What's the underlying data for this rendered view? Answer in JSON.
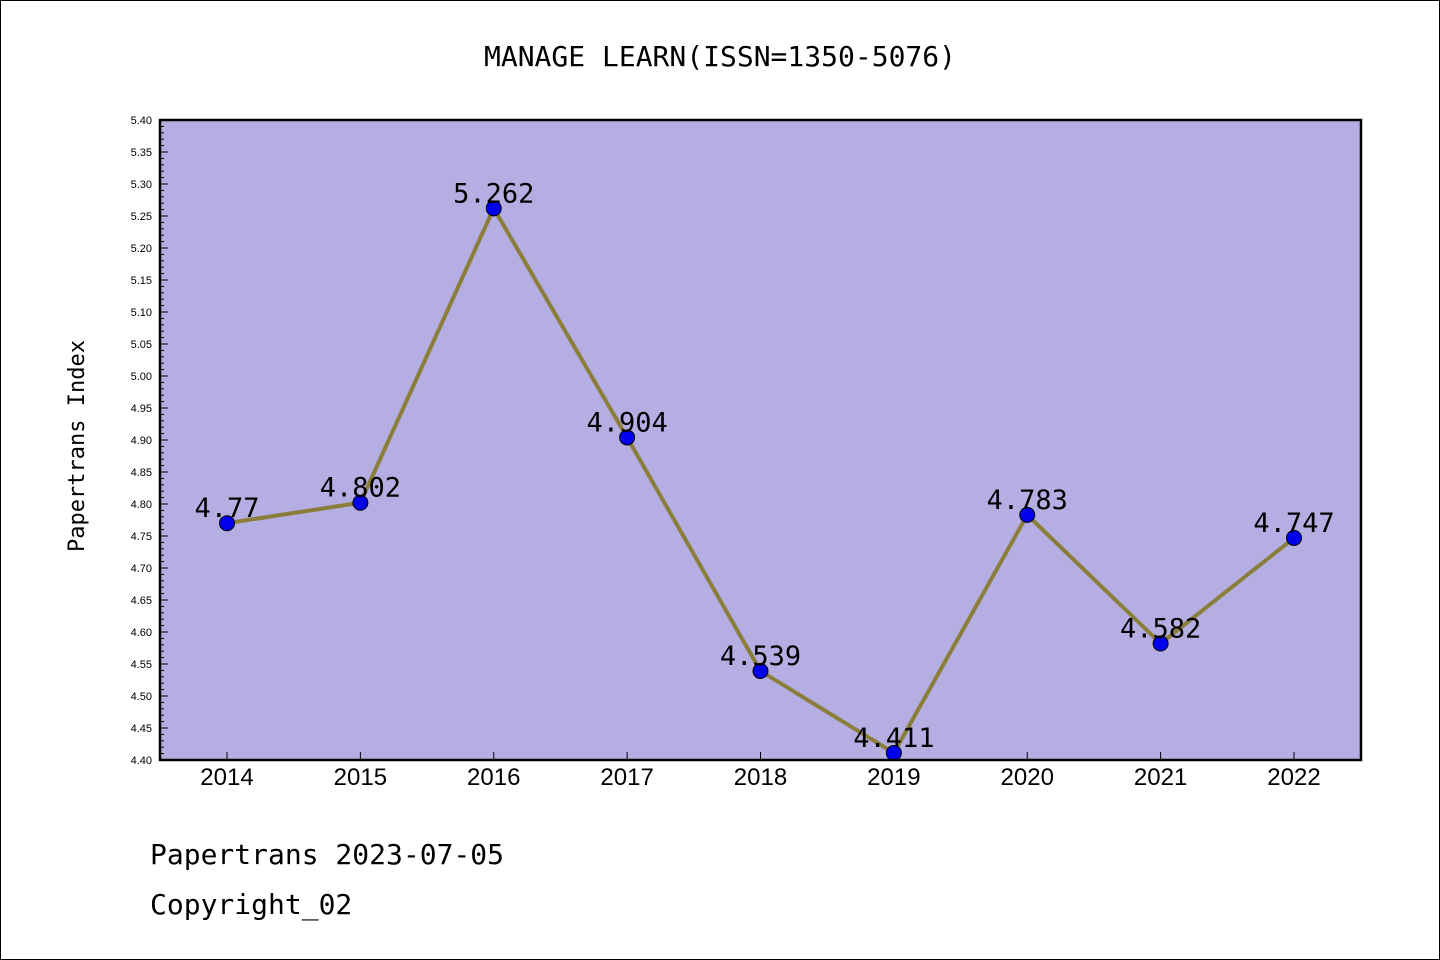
{
  "chart_data": {
    "type": "line",
    "title": "MANAGE LEARN(ISSN=1350-5076)",
    "ylabel": "Papertrans Index",
    "xlabel": "",
    "categories": [
      "2014",
      "2015",
      "2016",
      "2017",
      "2018",
      "2019",
      "2020",
      "2021",
      "2022"
    ],
    "values": [
      4.77,
      4.802,
      5.262,
      4.904,
      4.539,
      4.411,
      4.783,
      4.582,
      4.747
    ],
    "data_labels": [
      "4.77",
      "4.802",
      "5.262",
      "4.904",
      "4.539",
      "4.411",
      "4.783",
      "4.582",
      "4.747"
    ],
    "ylim": [
      4.4,
      5.4
    ],
    "yticks": [
      "4.40",
      "4.45",
      "4.50",
      "4.55",
      "4.60",
      "4.65",
      "4.70",
      "4.75",
      "4.80",
      "4.85",
      "4.90",
      "4.95",
      "5.00",
      "5.05",
      "5.10",
      "5.15",
      "5.20",
      "5.25",
      "5.30",
      "5.35",
      "5.40"
    ],
    "grid": false,
    "colors": {
      "plot_bg": "#b4aee2",
      "line": "#8b7d3a",
      "marker": "#0000ee"
    }
  },
  "footer": {
    "line1": "Papertrans 2023-07-05",
    "line2": "Copyright_02"
  }
}
